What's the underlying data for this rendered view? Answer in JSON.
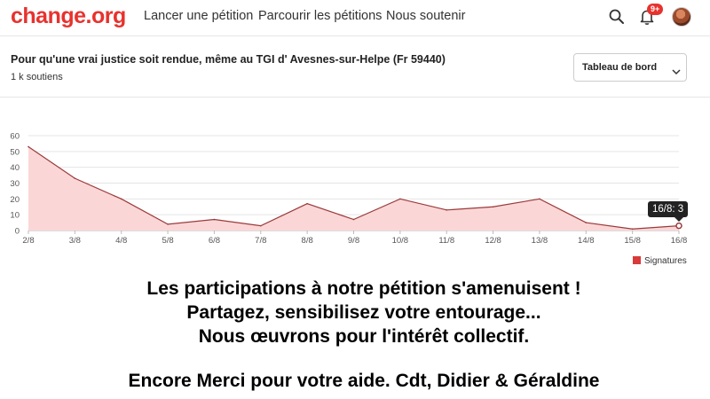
{
  "nav": {
    "logo": "change.org",
    "links": [
      "Lancer une pétition",
      "Parcourir les pétitions",
      "Nous soutenir"
    ],
    "notification_badge": "9+",
    "icons": [
      "search-icon",
      "bell-icon",
      "avatar"
    ]
  },
  "petition": {
    "title": "Pour qu'une vrai justice soit rendue, même au TGI d' Avesnes-sur-Helpe (Fr 59440)",
    "supporters": "1 k soutiens",
    "dashboard_select": "Tableau de bord"
  },
  "chart_data": {
    "type": "area",
    "categories": [
      "2/8",
      "3/8",
      "4/8",
      "5/8",
      "6/8",
      "7/8",
      "8/8",
      "9/8",
      "10/8",
      "11/8",
      "12/8",
      "13/8",
      "14/8",
      "15/8",
      "16/8"
    ],
    "series": [
      {
        "name": "Signatures",
        "values": [
          53,
          33,
          20,
          4,
          7,
          3,
          17,
          7,
          20,
          13,
          15,
          20,
          5,
          1,
          3
        ],
        "color": "#d93a3a",
        "fill": "#fbd6d6"
      }
    ],
    "yticks": [
      0,
      10,
      20,
      30,
      40,
      50,
      60
    ],
    "ylim": [
      0,
      60
    ],
    "grid": true,
    "legend": "bottom-right",
    "tooltip": "16/8: 3"
  },
  "message": {
    "lines": [
      "Les participations à notre pétition s'amenuisent !",
      "Partagez, sensibilisez votre entourage...",
      "Nous œuvrons pour l'intérêt collectif.",
      "Encore Merci pour votre aide. Cdt, Didier & Géraldine"
    ]
  }
}
